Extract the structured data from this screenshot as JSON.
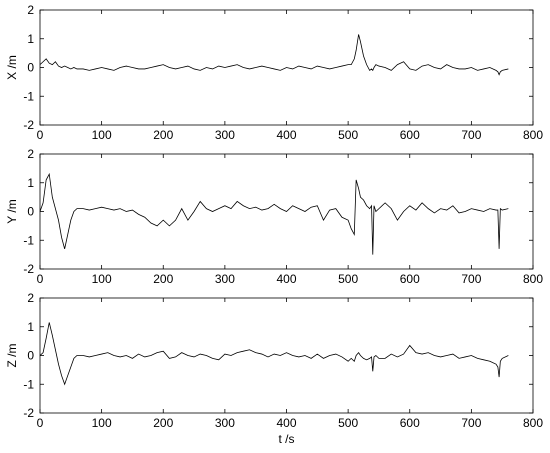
{
  "chart_data": [
    {
      "type": "line",
      "ylabel": "X /m",
      "xlim": [
        0,
        800
      ],
      "xticks": [
        0,
        100,
        200,
        300,
        400,
        500,
        600,
        700,
        800
      ],
      "ylim": [
        -2,
        2
      ],
      "yticks": [
        -2,
        -1,
        0,
        1,
        2
      ],
      "x": [
        0,
        5,
        10,
        15,
        20,
        25,
        30,
        35,
        40,
        45,
        50,
        55,
        60,
        70,
        80,
        90,
        100,
        110,
        120,
        130,
        140,
        150,
        160,
        170,
        180,
        190,
        200,
        210,
        220,
        230,
        240,
        250,
        260,
        270,
        280,
        290,
        300,
        310,
        320,
        330,
        340,
        350,
        360,
        370,
        380,
        390,
        400,
        410,
        420,
        430,
        440,
        450,
        460,
        470,
        480,
        490,
        500,
        505,
        510,
        513,
        517,
        520,
        525,
        530,
        535,
        538,
        540,
        542,
        545,
        550,
        560,
        570,
        580,
        590,
        600,
        610,
        620,
        630,
        640,
        650,
        660,
        670,
        680,
        690,
        700,
        710,
        720,
        730,
        740,
        743,
        745,
        747,
        750,
        760
      ],
      "series": [
        {
          "color": "#000000",
          "values": [
            0.1,
            0.2,
            0.3,
            0.15,
            0.1,
            0.2,
            0.05,
            0,
            0.05,
            0,
            -0.05,
            0,
            -0.05,
            -0.05,
            -0.1,
            -0.05,
            0,
            -0.05,
            -0.1,
            0,
            0.05,
            0,
            -0.05,
            -0.05,
            0,
            0.05,
            0.1,
            0,
            -0.05,
            0,
            0.05,
            -0.05,
            -0.1,
            0,
            -0.05,
            0.05,
            0,
            0.05,
            0.1,
            0,
            -0.05,
            0,
            0.05,
            0,
            -0.05,
            -0.1,
            0,
            -0.05,
            0.05,
            0,
            -0.05,
            0.05,
            0,
            -0.05,
            0,
            0.05,
            0.1,
            0.1,
            0.3,
            0.6,
            1.15,
            0.9,
            0.4,
            0.1,
            -0.1,
            -0.05,
            -0.1,
            0,
            0.1,
            0.05,
            0,
            -0.1,
            0.1,
            0.2,
            -0.05,
            -0.1,
            0.05,
            0.1,
            0,
            -0.05,
            0.1,
            0,
            -0.05,
            -0.05,
            0,
            -0.1,
            -0.05,
            0,
            -0.1,
            -0.15,
            -0.25,
            -0.15,
            -0.1,
            -0.05
          ]
        }
      ]
    },
    {
      "type": "line",
      "ylabel": "Y /m",
      "xlim": [
        0,
        800
      ],
      "xticks": [
        0,
        100,
        200,
        300,
        400,
        500,
        600,
        700,
        800
      ],
      "ylim": [
        -2,
        2
      ],
      "yticks": [
        -2,
        -1,
        0,
        1,
        2
      ],
      "x": [
        0,
        5,
        10,
        15,
        20,
        25,
        30,
        35,
        40,
        45,
        50,
        55,
        60,
        70,
        80,
        90,
        100,
        110,
        120,
        130,
        140,
        150,
        160,
        170,
        180,
        190,
        200,
        210,
        220,
        230,
        240,
        250,
        260,
        270,
        280,
        290,
        300,
        310,
        320,
        330,
        340,
        350,
        360,
        370,
        380,
        390,
        400,
        410,
        420,
        430,
        440,
        450,
        460,
        470,
        480,
        490,
        500,
        505,
        510,
        513,
        517,
        520,
        525,
        530,
        535,
        538,
        540,
        542,
        545,
        550,
        560,
        570,
        580,
        590,
        600,
        610,
        620,
        630,
        640,
        650,
        660,
        670,
        680,
        690,
        700,
        710,
        720,
        730,
        740,
        743,
        745,
        747,
        750,
        760
      ],
      "series": [
        {
          "color": "#000000",
          "values": [
            0,
            0.3,
            1.1,
            1.3,
            0.5,
            0.1,
            -0.3,
            -0.9,
            -1.3,
            -0.8,
            -0.3,
            0,
            0.1,
            0.1,
            0.05,
            0.1,
            0.15,
            0.1,
            0.05,
            0.1,
            0,
            0.05,
            -0.1,
            -0.2,
            -0.4,
            -0.5,
            -0.3,
            -0.5,
            -0.3,
            0.1,
            -0.3,
            0,
            0.35,
            0.1,
            0,
            0.1,
            0.2,
            0.1,
            0.35,
            0.2,
            0.1,
            0.15,
            0.05,
            0.1,
            0.25,
            0.1,
            0,
            0.2,
            0.1,
            0,
            0.15,
            0.2,
            -0.3,
            0.05,
            0.1,
            -0.2,
            -0.3,
            -0.6,
            -0.8,
            1.1,
            0.8,
            0.5,
            0.4,
            0.2,
            0.1,
            0.2,
            -1.5,
            0.2,
            0,
            0.1,
            0.3,
            0.1,
            -0.3,
            0,
            0.2,
            0.05,
            0.3,
            0.1,
            -0.05,
            0.1,
            0.05,
            0.2,
            -0.05,
            0,
            0.1,
            0.05,
            0,
            0.1,
            0.05,
            0.05,
            -1.3,
            0.1,
            0.05,
            0.1
          ]
        }
      ]
    },
    {
      "type": "line",
      "ylabel": "Z /m",
      "xlabel": "t /s",
      "xlim": [
        0,
        800
      ],
      "xticks": [
        0,
        100,
        200,
        300,
        400,
        500,
        600,
        700,
        800
      ],
      "ylim": [
        -2,
        2
      ],
      "yticks": [
        -2,
        -1,
        0,
        1,
        2
      ],
      "x": [
        0,
        5,
        10,
        15,
        20,
        25,
        30,
        35,
        40,
        45,
        50,
        55,
        60,
        70,
        80,
        90,
        100,
        110,
        120,
        130,
        140,
        150,
        160,
        170,
        180,
        190,
        200,
        210,
        220,
        230,
        240,
        250,
        260,
        270,
        280,
        290,
        300,
        310,
        320,
        330,
        340,
        350,
        360,
        370,
        380,
        390,
        400,
        410,
        420,
        430,
        440,
        450,
        460,
        470,
        480,
        490,
        500,
        505,
        510,
        513,
        517,
        520,
        525,
        530,
        535,
        538,
        540,
        542,
        545,
        550,
        560,
        570,
        580,
        590,
        600,
        610,
        620,
        630,
        640,
        650,
        660,
        670,
        680,
        690,
        700,
        710,
        720,
        730,
        740,
        743,
        745,
        747,
        750,
        760
      ],
      "series": [
        {
          "color": "#000000",
          "values": [
            0,
            0.1,
            0.6,
            1.15,
            0.7,
            0.2,
            -0.3,
            -0.7,
            -1.0,
            -0.7,
            -0.4,
            -0.1,
            0,
            0,
            -0.05,
            0,
            0.05,
            0.1,
            0,
            -0.05,
            0,
            -0.1,
            0.05,
            -0.05,
            0,
            0.1,
            0.15,
            -0.1,
            -0.05,
            0.1,
            0,
            -0.05,
            0.05,
            0,
            -0.1,
            -0.15,
            0.05,
            0,
            0.1,
            0.15,
            0.2,
            0.1,
            0.05,
            -0.05,
            0.05,
            0,
            0.1,
            0,
            -0.05,
            0,
            -0.1,
            0.05,
            -0.1,
            0,
            0.05,
            -0.05,
            -0.2,
            -0.1,
            -0.2,
            0,
            0.1,
            0,
            -0.1,
            -0.15,
            -0.1,
            -0.05,
            -0.55,
            -0.05,
            0,
            -0.1,
            -0.1,
            0.05,
            -0.05,
            0.05,
            0.35,
            0.1,
            0.05,
            0.1,
            0,
            -0.05,
            0,
            0.05,
            -0.1,
            -0.05,
            0,
            -0.1,
            -0.15,
            -0.2,
            -0.3,
            -0.4,
            -0.75,
            -0.2,
            -0.1,
            0
          ]
        }
      ]
    }
  ]
}
